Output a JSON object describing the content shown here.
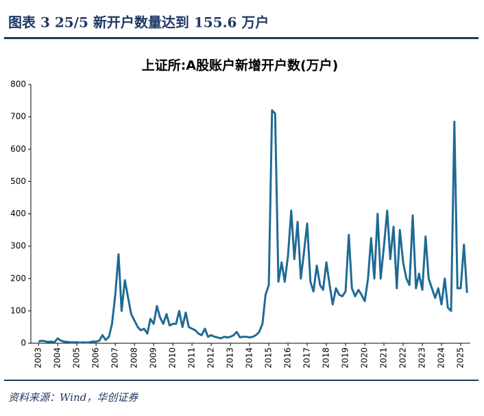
{
  "header": {
    "title": "图表 3   25/5 新开户数量达到 155.6 万户"
  },
  "chart_data": {
    "type": "line",
    "title": "上证所:A股账户新增开户数(万户)",
    "color": "#1f6a94",
    "x": [
      2003,
      2003.17,
      2003.33,
      2003.5,
      2003.67,
      2003.83,
      2004,
      2004.17,
      2004.33,
      2004.5,
      2004.67,
      2004.83,
      2005,
      2005.17,
      2005.33,
      2005.5,
      2005.67,
      2005.83,
      2006,
      2006.17,
      2006.33,
      2006.5,
      2006.67,
      2006.83,
      2007,
      2007.17,
      2007.33,
      2007.5,
      2007.67,
      2007.83,
      2008,
      2008.17,
      2008.33,
      2008.5,
      2008.67,
      2008.83,
      2009,
      2009.17,
      2009.33,
      2009.5,
      2009.67,
      2009.83,
      2010,
      2010.17,
      2010.33,
      2010.5,
      2010.67,
      2010.83,
      2011,
      2011.17,
      2011.33,
      2011.5,
      2011.67,
      2011.83,
      2012,
      2012.17,
      2012.33,
      2012.5,
      2012.67,
      2012.83,
      2013,
      2013.17,
      2013.33,
      2013.5,
      2013.67,
      2013.83,
      2014,
      2014.17,
      2014.33,
      2014.5,
      2014.67,
      2014.83,
      2015,
      2015.17,
      2015.33,
      2015.5,
      2015.67,
      2015.83,
      2016,
      2016.17,
      2016.33,
      2016.5,
      2016.67,
      2016.83,
      2017,
      2017.17,
      2017.33,
      2017.5,
      2017.67,
      2017.83,
      2018,
      2018.17,
      2018.33,
      2018.5,
      2018.67,
      2018.83,
      2019,
      2019.17,
      2019.33,
      2019.5,
      2019.67,
      2019.83,
      2020,
      2020.17,
      2020.33,
      2020.5,
      2020.67,
      2020.83,
      2021,
      2021.17,
      2021.33,
      2021.5,
      2021.67,
      2021.83,
      2022,
      2022.17,
      2022.33,
      2022.5,
      2022.67,
      2022.83,
      2023,
      2023.17,
      2023.33,
      2023.5,
      2023.67,
      2023.83,
      2024,
      2024.17,
      2024.33,
      2024.5,
      2024.67,
      2024.83,
      2025,
      2025.17,
      2025.33
    ],
    "values": [
      5,
      8,
      6,
      4,
      5,
      3,
      15,
      8,
      5,
      4,
      3,
      3,
      3,
      2,
      3,
      2,
      3,
      5,
      5,
      8,
      25,
      10,
      20,
      60,
      150,
      275,
      100,
      195,
      140,
      90,
      70,
      50,
      40,
      45,
      30,
      75,
      60,
      115,
      80,
      60,
      90,
      55,
      60,
      60,
      100,
      50,
      95,
      50,
      45,
      40,
      30,
      25,
      45,
      20,
      25,
      20,
      18,
      15,
      20,
      18,
      20,
      25,
      35,
      18,
      20,
      20,
      18,
      20,
      25,
      35,
      60,
      150,
      180,
      720,
      710,
      190,
      250,
      190,
      270,
      410,
      260,
      375,
      200,
      280,
      370,
      190,
      160,
      240,
      180,
      165,
      250,
      180,
      120,
      170,
      150,
      145,
      160,
      335,
      170,
      145,
      165,
      150,
      130,
      200,
      325,
      200,
      400,
      200,
      300,
      410,
      260,
      360,
      170,
      350,
      250,
      200,
      180,
      395,
      170,
      215,
      165,
      330,
      200,
      170,
      140,
      170,
      120,
      200,
      110,
      100,
      685,
      170,
      170,
      305,
      155.6
    ],
    "xlim": [
      2002.6,
      2025.5
    ],
    "xticks": [
      2003,
      2004,
      2005,
      2006,
      2007,
      2008,
      2009,
      2010,
      2011,
      2012,
      2013,
      2014,
      2015,
      2016,
      2017,
      2018,
      2019,
      2020,
      2021,
      2022,
      2023,
      2024,
      2025
    ],
    "ylim": [
      0,
      800
    ],
    "yticks": [
      0,
      100,
      200,
      300,
      400,
      500,
      600,
      700,
      800
    ],
    "grid": false
  },
  "footer": {
    "source": "资料来源：Wind，华创证券"
  }
}
